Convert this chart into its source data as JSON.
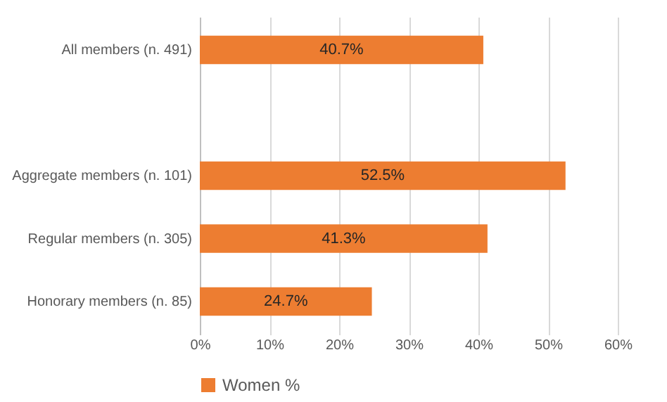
{
  "chart_data": {
    "type": "bar",
    "orientation": "horizontal",
    "categories": [
      "All members (n. 491)",
      null,
      "Aggregate members (n. 101)",
      "Regular members (n. 305)",
      "Honorary members (n. 85)"
    ],
    "series": [
      {
        "name": "Women %",
        "color": "#ed7d31",
        "values": [
          40.7,
          null,
          52.5,
          41.3,
          24.7
        ],
        "value_labels": [
          "40.7%",
          null,
          "52.5%",
          "41.3%",
          "24.7%"
        ]
      }
    ],
    "xlim": [
      0,
      60
    ],
    "xticks": [
      {
        "value": 0,
        "label": "0%"
      },
      {
        "value": 10,
        "label": "10%"
      },
      {
        "value": 20,
        "label": "20%"
      },
      {
        "value": 30,
        "label": "30%"
      },
      {
        "value": 40,
        "label": "40%"
      },
      {
        "value": 50,
        "label": "50%"
      },
      {
        "value": 60,
        "label": "60%"
      }
    ],
    "grid": "x",
    "legend": "bottom"
  }
}
